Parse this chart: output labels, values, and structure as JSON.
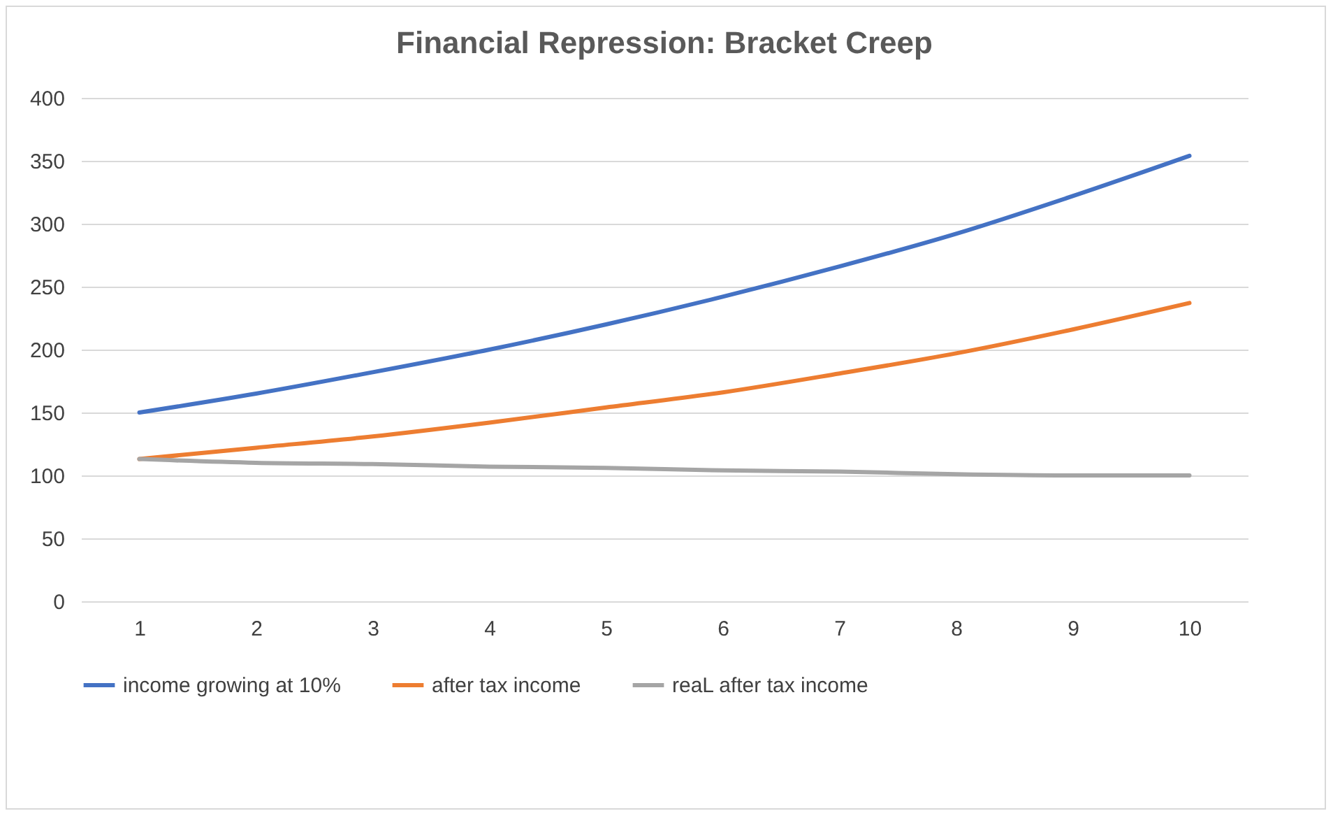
{
  "chart_data": {
    "type": "line",
    "title": "Financial Repression: Bracket Creep",
    "categories": [
      "1",
      "2",
      "3",
      "4",
      "5",
      "6",
      "7",
      "8",
      "9",
      "10"
    ],
    "series": [
      {
        "name": "income growing at 10%",
        "color": "#4472c4",
        "values": [
          150,
          165,
          182,
          200,
          220,
          242,
          266,
          292,
          322,
          354
        ]
      },
      {
        "name": "after tax income",
        "color": "#ed7d31",
        "values": [
          113,
          122,
          131,
          142,
          154,
          166,
          181,
          197,
          216,
          237
        ]
      },
      {
        "name": "reaL after tax income",
        "color": "#a5a5a5",
        "values": [
          113,
          110,
          109,
          107,
          106,
          104,
          103,
          101,
          100,
          100
        ]
      }
    ],
    "ylim": [
      0,
      400
    ],
    "yticks": [
      0,
      50,
      100,
      150,
      200,
      250,
      300,
      350,
      400
    ],
    "grid": "y",
    "legend": "bottom",
    "marker": "none",
    "line_style": "solid"
  }
}
